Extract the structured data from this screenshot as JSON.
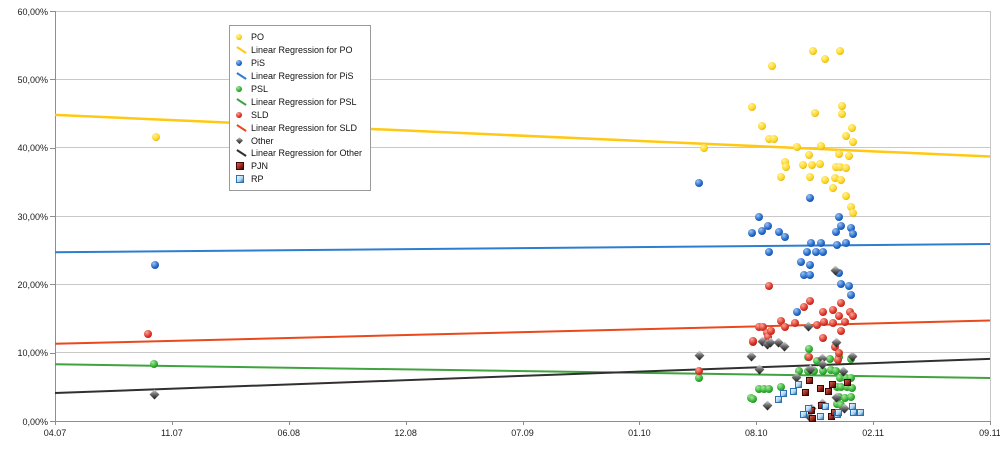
{
  "chart_data": {
    "type": "scatter",
    "title": "",
    "x_axis": {
      "type": "time",
      "ticks": [
        "04.07",
        "11.07",
        "06.08",
        "12.08",
        "07.09",
        "01.10",
        "08.10",
        "02.11",
        "09.11"
      ],
      "note": "point x values given as fraction of axis from first tick (04.07) to last tick (09.11)"
    },
    "y_axis": {
      "min": 0,
      "max": 60,
      "ticks": [
        {
          "value": 0,
          "label": "0,00%"
        },
        {
          "value": 10,
          "label": "10,00%"
        },
        {
          "value": 20,
          "label": "20,00%"
        },
        {
          "value": 30,
          "label": "30,00%"
        },
        {
          "value": 40,
          "label": "40,00%"
        },
        {
          "value": 50,
          "label": "50,00%"
        },
        {
          "value": 60,
          "label": "60,00%"
        }
      ]
    },
    "grid": true,
    "legend_position": "top-left-inset",
    "series": [
      {
        "name": "PO",
        "marker": "sphere",
        "colors": {
          "light": "#FFF3A0",
          "base": "#FFD521",
          "dark": "#B78E00"
        },
        "points": [
          [
            0.108,
            41.5
          ],
          [
            0.694,
            39.9
          ],
          [
            0.745,
            46.0
          ],
          [
            0.756,
            43.2
          ],
          [
            0.764,
            41.3
          ],
          [
            0.767,
            52.0
          ],
          [
            0.769,
            41.3
          ],
          [
            0.777,
            35.7
          ],
          [
            0.781,
            37.9
          ],
          [
            0.782,
            37.2
          ],
          [
            0.794,
            40.1
          ],
          [
            0.8,
            37.4
          ],
          [
            0.806,
            38.9
          ],
          [
            0.807,
            35.7
          ],
          [
            0.81,
            37.4
          ],
          [
            0.811,
            54.1
          ],
          [
            0.813,
            45.1
          ],
          [
            0.818,
            37.6
          ],
          [
            0.819,
            40.2
          ],
          [
            0.823,
            53.0
          ],
          [
            0.823,
            35.2
          ],
          [
            0.832,
            34.1
          ],
          [
            0.834,
            35.5
          ],
          [
            0.835,
            37.2
          ],
          [
            0.838,
            39.1
          ],
          [
            0.84,
            54.2
          ],
          [
            0.84,
            37.2
          ],
          [
            0.841,
            35.2
          ],
          [
            0.842,
            46.1
          ],
          [
            0.842,
            44.9
          ],
          [
            0.846,
            41.7
          ],
          [
            0.846,
            37.0
          ],
          [
            0.846,
            32.9
          ],
          [
            0.849,
            38.8
          ],
          [
            0.851,
            31.3
          ],
          [
            0.852,
            42.9
          ],
          [
            0.853,
            30.5
          ],
          [
            0.854,
            40.8
          ]
        ]
      },
      {
        "name": "PiS",
        "marker": "sphere",
        "colors": {
          "light": "#9DC3F0",
          "base": "#2268C8",
          "dark": "#0A3C8E"
        },
        "points": [
          [
            0.107,
            22.8
          ],
          [
            0.689,
            34.9
          ],
          [
            0.745,
            27.5
          ],
          [
            0.753,
            29.8
          ],
          [
            0.756,
            27.8
          ],
          [
            0.763,
            28.6
          ],
          [
            0.764,
            24.7
          ],
          [
            0.774,
            27.6
          ],
          [
            0.781,
            27.0
          ],
          [
            0.794,
            15.9
          ],
          [
            0.798,
            23.2
          ],
          [
            0.801,
            21.4
          ],
          [
            0.804,
            24.8
          ],
          [
            0.807,
            32.7
          ],
          [
            0.807,
            22.9
          ],
          [
            0.807,
            21.4
          ],
          [
            0.809,
            26.0
          ],
          [
            0.814,
            24.8
          ],
          [
            0.819,
            26.0
          ],
          [
            0.821,
            24.7
          ],
          [
            0.835,
            27.6
          ],
          [
            0.836,
            25.8
          ],
          [
            0.838,
            29.8
          ],
          [
            0.838,
            21.7
          ],
          [
            0.841,
            28.6
          ],
          [
            0.841,
            20.0
          ],
          [
            0.846,
            26.0
          ],
          [
            0.849,
            19.7
          ],
          [
            0.851,
            28.3
          ],
          [
            0.851,
            18.5
          ],
          [
            0.853,
            27.3
          ]
        ]
      },
      {
        "name": "PSL",
        "marker": "sphere",
        "colors": {
          "light": "#A8E8A0",
          "base": "#2FAF2F",
          "dark": "#0F6B0F"
        },
        "points": [
          [
            0.106,
            8.4
          ],
          [
            0.689,
            6.3
          ],
          [
            0.744,
            3.4
          ],
          [
            0.746,
            3.2
          ],
          [
            0.753,
            4.7
          ],
          [
            0.758,
            4.7
          ],
          [
            0.764,
            4.7
          ],
          [
            0.777,
            5.0
          ],
          [
            0.796,
            7.3
          ],
          [
            0.805,
            9.3
          ],
          [
            0.805,
            7.3
          ],
          [
            0.806,
            10.6
          ],
          [
            0.812,
            7.3
          ],
          [
            0.815,
            8.8
          ],
          [
            0.821,
            7.3
          ],
          [
            0.829,
            9.1
          ],
          [
            0.83,
            7.5
          ],
          [
            0.835,
            7.3
          ],
          [
            0.836,
            5.0
          ],
          [
            0.836,
            2.5
          ],
          [
            0.838,
            3.5
          ],
          [
            0.839,
            9.4
          ],
          [
            0.84,
            6.3
          ],
          [
            0.841,
            5.0
          ],
          [
            0.841,
            2.3
          ],
          [
            0.845,
            3.4
          ],
          [
            0.846,
            6.3
          ],
          [
            0.847,
            5.0
          ],
          [
            0.851,
            9.1
          ],
          [
            0.851,
            6.3
          ],
          [
            0.851,
            3.5
          ],
          [
            0.852,
            4.8
          ]
        ]
      },
      {
        "name": "SLD",
        "marker": "sphere",
        "colors": {
          "light": "#F7A898",
          "base": "#DD3327",
          "dark": "#8E0E04"
        },
        "points": [
          [
            0.099,
            12.8
          ],
          [
            0.689,
            7.3
          ],
          [
            0.747,
            11.5
          ],
          [
            0.747,
            11.7
          ],
          [
            0.753,
            13.8
          ],
          [
            0.757,
            13.8
          ],
          [
            0.761,
            12.9
          ],
          [
            0.763,
            12.3
          ],
          [
            0.764,
            19.8
          ],
          [
            0.766,
            13.1
          ],
          [
            0.777,
            14.7
          ],
          [
            0.781,
            13.8
          ],
          [
            0.791,
            14.4
          ],
          [
            0.801,
            16.7
          ],
          [
            0.806,
            9.3
          ],
          [
            0.807,
            17.5
          ],
          [
            0.815,
            14.0
          ],
          [
            0.821,
            15.9
          ],
          [
            0.821,
            12.2
          ],
          [
            0.822,
            14.5
          ],
          [
            0.832,
            16.3
          ],
          [
            0.832,
            14.4
          ],
          [
            0.834,
            10.9
          ],
          [
            0.837,
            9.0
          ],
          [
            0.838,
            15.3
          ],
          [
            0.838,
            10.0
          ],
          [
            0.841,
            17.3
          ],
          [
            0.841,
            13.1
          ],
          [
            0.845,
            14.5
          ],
          [
            0.85,
            15.9
          ],
          [
            0.853,
            15.3
          ]
        ]
      },
      {
        "name": "Other",
        "marker": "diamond",
        "colors": {
          "light": "#E0E0E0",
          "base": "#707070",
          "dark": "#161616"
        },
        "points": [
          [
            0.106,
            3.9
          ],
          [
            0.689,
            9.6
          ],
          [
            0.745,
            9.4
          ],
          [
            0.753,
            7.5
          ],
          [
            0.757,
            11.6
          ],
          [
            0.762,
            11.2
          ],
          [
            0.762,
            2.3
          ],
          [
            0.765,
            11.5
          ],
          [
            0.774,
            11.5
          ],
          [
            0.78,
            10.9
          ],
          [
            0.793,
            6.3
          ],
          [
            0.806,
            13.8
          ],
          [
            0.807,
            0.6
          ],
          [
            0.808,
            7.6
          ],
          [
            0.809,
            1.9
          ],
          [
            0.821,
            9.1
          ],
          [
            0.821,
            8.2
          ],
          [
            0.821,
            2.6
          ],
          [
            0.835,
            22.0
          ],
          [
            0.836,
            11.5
          ],
          [
            0.836,
            3.4
          ],
          [
            0.843,
            7.3
          ],
          [
            0.844,
            1.9
          ],
          [
            0.853,
            9.5
          ]
        ]
      },
      {
        "name": "PJN",
        "marker": "square",
        "colors": {
          "light": "#C96A5A",
          "base": "#9A241A",
          "dark": "#3F0703"
        },
        "points": [
          [
            0.803,
            4.1
          ],
          [
            0.807,
            6.0
          ],
          [
            0.809,
            1.5
          ],
          [
            0.81,
            0.4
          ],
          [
            0.819,
            4.7
          ],
          [
            0.82,
            2.3
          ],
          [
            0.827,
            4.3
          ],
          [
            0.83,
            0.6
          ],
          [
            0.832,
            5.3
          ],
          [
            0.834,
            1.3
          ],
          [
            0.848,
            5.6
          ]
        ]
      },
      {
        "name": "RP",
        "marker": "square",
        "colors": {
          "light": "#F0F9FF",
          "base": "#A9D4F1",
          "dark": "#2F6FAE"
        },
        "points": [
          [
            0.774,
            3.2
          ],
          [
            0.779,
            4.0
          ],
          [
            0.79,
            4.3
          ],
          [
            0.795,
            5.4
          ],
          [
            0.801,
            0.9
          ],
          [
            0.806,
            1.8
          ],
          [
            0.819,
            0.6
          ],
          [
            0.824,
            2.1
          ],
          [
            0.837,
            0.9
          ],
          [
            0.838,
            1.2
          ],
          [
            0.853,
            2.1
          ],
          [
            0.854,
            1.2
          ],
          [
            0.862,
            1.3
          ]
        ]
      }
    ],
    "regressions": [
      {
        "name": "Linear Regression for PO",
        "color": "#FFC812",
        "width": 2.5,
        "start": 44.8,
        "end": 38.7
      },
      {
        "name": "Linear Regression for PiS",
        "color": "#2E7DD1",
        "width": 2,
        "start": 24.7,
        "end": 25.9
      },
      {
        "name": "Linear Regression for PSL",
        "color": "#3FA33F",
        "width": 2,
        "start": 8.3,
        "end": 6.3
      },
      {
        "name": "Linear Regression for SLD",
        "color": "#E8491D",
        "width": 2,
        "start": 11.3,
        "end": 14.7
      },
      {
        "name": "Linear Regression for Other",
        "color": "#303030",
        "width": 2,
        "start": 4.1,
        "end": 9.1
      }
    ],
    "legend": {
      "items": [
        {
          "label": "PO",
          "marker": "sphere",
          "ref": "PO"
        },
        {
          "label": "Linear Regression for PO",
          "marker": "diag",
          "ref": "Linear Regression for PO"
        },
        {
          "label": "PiS",
          "marker": "sphere",
          "ref": "PiS"
        },
        {
          "label": "Linear Regression for PiS",
          "marker": "diag",
          "ref": "Linear Regression for PiS"
        },
        {
          "label": "PSL",
          "marker": "sphere",
          "ref": "PSL"
        },
        {
          "label": "Linear Regression for PSL",
          "marker": "diag",
          "ref": "Linear Regression for PSL"
        },
        {
          "label": "SLD",
          "marker": "sphere",
          "ref": "SLD"
        },
        {
          "label": "Linear Regression for SLD",
          "marker": "diag",
          "ref": "Linear Regression for SLD"
        },
        {
          "label": "Other",
          "marker": "diamond",
          "ref": "Other"
        },
        {
          "label": "Linear Regression for Other",
          "marker": "diag",
          "ref": "Linear Regression for Other"
        },
        {
          "label": "PJN",
          "marker": "square",
          "ref": "PJN"
        },
        {
          "label": "RP",
          "marker": "square",
          "ref": "RP"
        }
      ]
    }
  }
}
